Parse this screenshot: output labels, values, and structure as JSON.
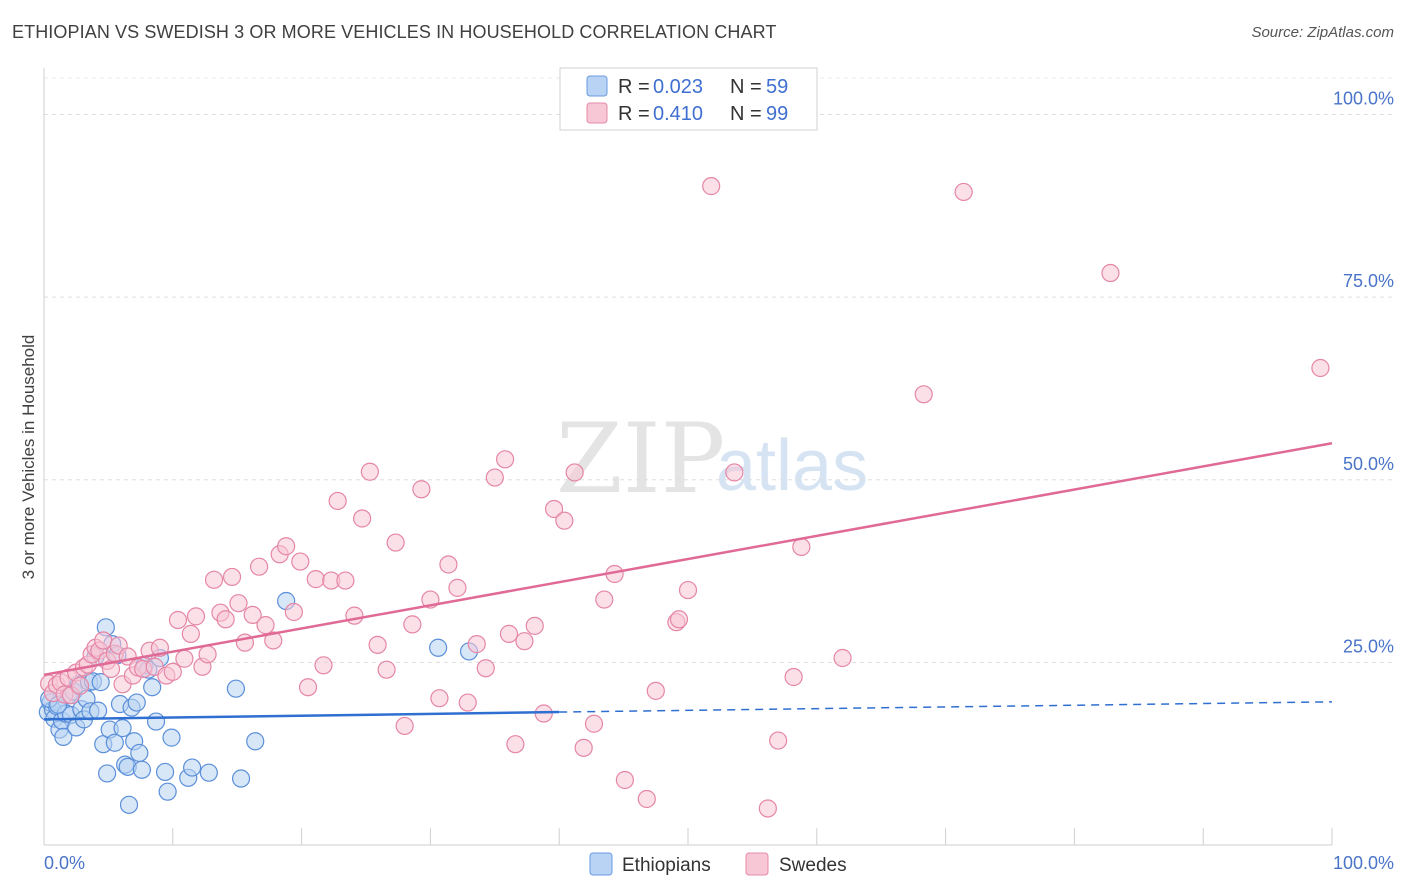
{
  "title": "ETHIOPIAN VS SWEDISH 3 OR MORE VEHICLES IN HOUSEHOLD CORRELATION CHART",
  "source": "Source: ZipAtlas.com",
  "watermark": {
    "left": "ZIP",
    "right": "atlas"
  },
  "legend": {
    "r_label": "R =",
    "n_label": "N =",
    "items": [
      {
        "name": "Ethiopians",
        "r": "0.023",
        "n": "59",
        "fill": "#b8d3f3",
        "stroke": "#6a9be0"
      },
      {
        "name": "Swedes",
        "r": "0.410",
        "n": "99",
        "fill": "#f7c7d6",
        "stroke": "#e58aa8"
      }
    ]
  },
  "chart_data": {
    "type": "scatter",
    "title": "ETHIOPIAN VS SWEDISH 3 OR MORE VEHICLES IN HOUSEHOLD CORRELATION CHART",
    "xlabel": "",
    "ylabel": "3 or more Vehicles in Household",
    "xlim": [
      0,
      100
    ],
    "ylim": [
      0,
      105
    ],
    "x_tick_labels": [
      "0.0%",
      "100.0%"
    ],
    "y_ticks": [
      25,
      50,
      75,
      100
    ],
    "y_tick_labels": [
      "25.0%",
      "50.0%",
      "75.0%",
      "100.0%"
    ],
    "series": [
      {
        "name": "Ethiopians",
        "color": "#5b8fd9",
        "line_color": "#2f6fd1",
        "trend": {
          "x0": 0,
          "y0": 17.2,
          "x1": 40,
          "y1": 18.2,
          "dash_to_x": 100,
          "dash_to_y": 19.6
        },
        "points": [
          [
            0.3,
            18.2
          ],
          [
            0.5,
            19.5
          ],
          [
            0.7,
            18.5
          ],
          [
            0.8,
            17.3
          ],
          [
            1.0,
            19.0
          ],
          [
            1.2,
            15.8
          ],
          [
            1.4,
            17.0
          ],
          [
            1.5,
            14.8
          ],
          [
            1.7,
            18.0
          ],
          [
            1.9,
            20.5
          ],
          [
            2.1,
            17.8
          ],
          [
            2.3,
            21.0
          ],
          [
            2.5,
            16.1
          ],
          [
            2.7,
            22.0
          ],
          [
            2.9,
            18.6
          ],
          [
            3.1,
            17.2
          ],
          [
            3.3,
            20.0
          ],
          [
            3.5,
            22.3
          ],
          [
            3.6,
            18.3
          ],
          [
            3.8,
            22.4
          ],
          [
            4.0,
            25.8
          ],
          [
            4.2,
            18.4
          ],
          [
            4.4,
            22.3
          ],
          [
            4.6,
            13.8
          ],
          [
            4.8,
            29.8
          ],
          [
            4.9,
            9.8
          ],
          [
            5.1,
            15.8
          ],
          [
            5.3,
            27.5
          ],
          [
            5.5,
            14.0
          ],
          [
            5.7,
            26.0
          ],
          [
            5.9,
            19.3
          ],
          [
            6.1,
            16.0
          ],
          [
            6.3,
            11.0
          ],
          [
            6.5,
            10.7
          ],
          [
            6.6,
            5.5
          ],
          [
            6.8,
            18.8
          ],
          [
            7.0,
            14.2
          ],
          [
            7.2,
            19.5
          ],
          [
            7.4,
            12.6
          ],
          [
            7.6,
            10.3
          ],
          [
            7.8,
            24.6
          ],
          [
            8.1,
            24.0
          ],
          [
            8.4,
            21.6
          ],
          [
            8.7,
            16.9
          ],
          [
            9.0,
            25.6
          ],
          [
            9.4,
            10.0
          ],
          [
            9.6,
            7.3
          ],
          [
            9.9,
            14.7
          ],
          [
            11.2,
            9.2
          ],
          [
            11.5,
            10.6
          ],
          [
            12.8,
            9.9
          ],
          [
            14.9,
            21.4
          ],
          [
            15.3,
            9.1
          ],
          [
            16.4,
            14.2
          ],
          [
            18.8,
            33.4
          ],
          [
            30.6,
            27.0
          ],
          [
            33.0,
            26.5
          ],
          [
            0.4,
            20.0
          ],
          [
            1.1,
            19.2
          ]
        ]
      },
      {
        "name": "Swedes",
        "color": "#e586a6",
        "line_color": "#e06a95",
        "trend": {
          "x0": 0,
          "y0": 23.3,
          "x1": 100,
          "y1": 55.0
        },
        "points": [
          [
            0.4,
            22.1
          ],
          [
            0.7,
            20.8
          ],
          [
            1.0,
            21.9
          ],
          [
            1.3,
            22.3
          ],
          [
            1.6,
            20.6
          ],
          [
            1.9,
            22.9
          ],
          [
            2.1,
            20.5
          ],
          [
            2.5,
            23.6
          ],
          [
            2.8,
            21.8
          ],
          [
            3.1,
            24.3
          ],
          [
            3.4,
            24.7
          ],
          [
            3.7,
            26.1
          ],
          [
            4.0,
            27.0
          ],
          [
            4.3,
            26.6
          ],
          [
            4.6,
            28.0
          ],
          [
            4.9,
            25.2
          ],
          [
            5.2,
            24.1
          ],
          [
            5.5,
            26.2
          ],
          [
            5.8,
            27.3
          ],
          [
            6.1,
            22.0
          ],
          [
            6.5,
            25.8
          ],
          [
            6.9,
            23.2
          ],
          [
            7.3,
            24.3
          ],
          [
            7.7,
            24.1
          ],
          [
            8.2,
            26.6
          ],
          [
            8.6,
            24.4
          ],
          [
            9.0,
            27.0
          ],
          [
            9.5,
            23.2
          ],
          [
            10.0,
            23.7
          ],
          [
            10.4,
            30.8
          ],
          [
            10.9,
            25.5
          ],
          [
            11.4,
            28.9
          ],
          [
            11.8,
            31.3
          ],
          [
            12.3,
            24.4
          ],
          [
            12.7,
            26.1
          ],
          [
            13.2,
            36.3
          ],
          [
            13.7,
            31.8
          ],
          [
            14.1,
            30.9
          ],
          [
            14.6,
            36.7
          ],
          [
            15.1,
            33.1
          ],
          [
            15.6,
            27.7
          ],
          [
            16.2,
            31.5
          ],
          [
            16.7,
            38.1
          ],
          [
            17.2,
            30.1
          ],
          [
            17.8,
            28.0
          ],
          [
            18.3,
            39.8
          ],
          [
            18.8,
            40.9
          ],
          [
            19.4,
            31.9
          ],
          [
            19.9,
            38.8
          ],
          [
            20.5,
            21.6
          ],
          [
            21.1,
            36.4
          ],
          [
            21.7,
            24.6
          ],
          [
            22.3,
            36.2
          ],
          [
            22.8,
            47.1
          ],
          [
            23.4,
            36.2
          ],
          [
            24.1,
            31.4
          ],
          [
            24.7,
            44.7
          ],
          [
            25.3,
            51.1
          ],
          [
            25.9,
            27.4
          ],
          [
            26.6,
            24.0
          ],
          [
            27.3,
            41.4
          ],
          [
            28.0,
            16.3
          ],
          [
            28.6,
            30.2
          ],
          [
            29.3,
            48.7
          ],
          [
            30.0,
            33.6
          ],
          [
            30.7,
            20.1
          ],
          [
            31.4,
            38.4
          ],
          [
            32.1,
            35.2
          ],
          [
            32.9,
            19.5
          ],
          [
            33.6,
            27.5
          ],
          [
            34.3,
            24.2
          ],
          [
            35.0,
            50.3
          ],
          [
            35.8,
            52.8
          ],
          [
            36.6,
            13.8
          ],
          [
            37.3,
            27.9
          ],
          [
            38.1,
            30.0
          ],
          [
            38.8,
            18.0
          ],
          [
            39.6,
            46.0
          ],
          [
            40.4,
            44.4
          ],
          [
            41.2,
            51.0
          ],
          [
            41.9,
            13.3
          ],
          [
            42.7,
            16.6
          ],
          [
            43.5,
            33.6
          ],
          [
            44.3,
            37.1
          ],
          [
            45.1,
            8.9
          ],
          [
            46.8,
            6.3
          ],
          [
            47.5,
            21.1
          ],
          [
            49.1,
            30.5
          ],
          [
            50.0,
            34.9
          ],
          [
            51.8,
            90.2
          ],
          [
            53.6,
            51.0
          ],
          [
            56.2,
            5.0
          ],
          [
            57.0,
            14.3
          ],
          [
            58.2,
            23.0
          ],
          [
            58.8,
            40.8
          ],
          [
            62.0,
            25.6
          ],
          [
            68.3,
            61.7
          ],
          [
            71.4,
            89.4
          ],
          [
            82.8,
            78.3
          ]
        ]
      }
    ],
    "extra_points_swedes": [
      [
        99.1,
        65.3
      ],
      [
        49.3,
        30.9
      ],
      [
        36.1,
        28.9
      ]
    ]
  }
}
